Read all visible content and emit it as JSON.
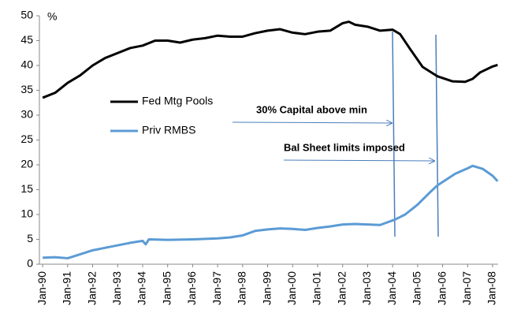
{
  "chart_data": {
    "type": "line",
    "y_unit": "%",
    "series": [
      {
        "name": "Fed Mtg Pools",
        "color": "#000000",
        "x": [
          1990,
          1990.5,
          1991,
          1991.5,
          1992,
          1992.5,
          1993,
          1993.5,
          1994,
          1994.5,
          1995,
          1995.5,
          1996,
          1996.5,
          1997,
          1997.5,
          1998,
          1998.5,
          1999,
          1999.5,
          2000,
          2000.5,
          2001,
          2001.5,
          2002,
          2002.25,
          2002.5,
          2003,
          2003.5,
          2004,
          2004.3,
          2004.7,
          2005.2,
          2005.8,
          2006.4,
          2006.9,
          2007.2,
          2007.5,
          2008,
          2008.2
        ],
        "values": [
          33.5,
          34.5,
          36.5,
          38,
          40,
          41.5,
          42.5,
          43.5,
          44,
          45,
          45,
          44.6,
          45.2,
          45.5,
          46,
          45.8,
          45.8,
          46.5,
          47,
          47.3,
          46.6,
          46.3,
          46.8,
          47,
          48.5,
          48.8,
          48.2,
          47.8,
          47,
          47.2,
          46.3,
          43.3,
          39.7,
          37.8,
          36.8,
          36.7,
          37.3,
          38.6,
          39.8,
          40.1
        ]
      },
      {
        "name": "Priv RMBS",
        "color": "#5b9bd5",
        "x": [
          1990,
          1990.5,
          1991,
          1991.5,
          1992,
          1992.5,
          1993,
          1993.5,
          1994,
          1994.12,
          1994.25,
          1995,
          1996,
          1997,
          1997.5,
          1998,
          1998.5,
          1999,
          1999.5,
          2000,
          2000.5,
          2001,
          2001.5,
          2002,
          2002.5,
          2003,
          2003.5,
          2004.1,
          2004.5,
          2005,
          2005.5,
          2005.8,
          2006.5,
          2007,
          2007.2,
          2007.6,
          2008,
          2008.2
        ],
        "values": [
          1.3,
          1.4,
          1.2,
          2,
          2.8,
          3.3,
          3.8,
          4.3,
          4.7,
          4,
          5,
          4.9,
          5,
          5.2,
          5.4,
          5.8,
          6.7,
          7,
          7.2,
          7.1,
          6.9,
          7.3,
          7.6,
          8,
          8.1,
          8,
          7.9,
          9,
          10,
          12,
          14.5,
          15.9,
          18.2,
          19.3,
          19.8,
          19.2,
          17.8,
          16.7
        ]
      }
    ],
    "annotations": [
      "30% Capital above min",
      "Bal Sheet limits imposed"
    ],
    "xlim": [
      1989.87,
      2008.22
    ],
    "xticks": [
      {
        "value": 1990,
        "label": "Jan-90"
      },
      {
        "value": 1991,
        "label": "Jan-91"
      },
      {
        "value": 1992,
        "label": "Jan-92"
      },
      {
        "value": 1993,
        "label": "Jan-93"
      },
      {
        "value": 1994,
        "label": "Jan-94"
      },
      {
        "value": 1995,
        "label": "Jan-95"
      },
      {
        "value": 1996,
        "label": "Jan-96"
      },
      {
        "value": 1997,
        "label": "Jan-97"
      },
      {
        "value": 1998,
        "label": "Jan-98"
      },
      {
        "value": 1999,
        "label": "Jan-99"
      },
      {
        "value": 2000,
        "label": "Jan-00"
      },
      {
        "value": 2001,
        "label": "Jan-01"
      },
      {
        "value": 2002,
        "label": "Jan-02"
      },
      {
        "value": 2003,
        "label": "Jan-03"
      },
      {
        "value": 2004,
        "label": "Jan-04"
      },
      {
        "value": 2005,
        "label": "Jan-05"
      },
      {
        "value": 2006,
        "label": "Jan-06"
      },
      {
        "value": 2007,
        "label": "Jan-07"
      },
      {
        "value": 2008,
        "label": "Jan-08"
      }
    ],
    "ylim": [
      0,
      50
    ],
    "yticks": [
      0,
      5,
      10,
      15,
      20,
      25,
      30,
      35,
      40,
      45,
      50
    ],
    "grid": false
  }
}
